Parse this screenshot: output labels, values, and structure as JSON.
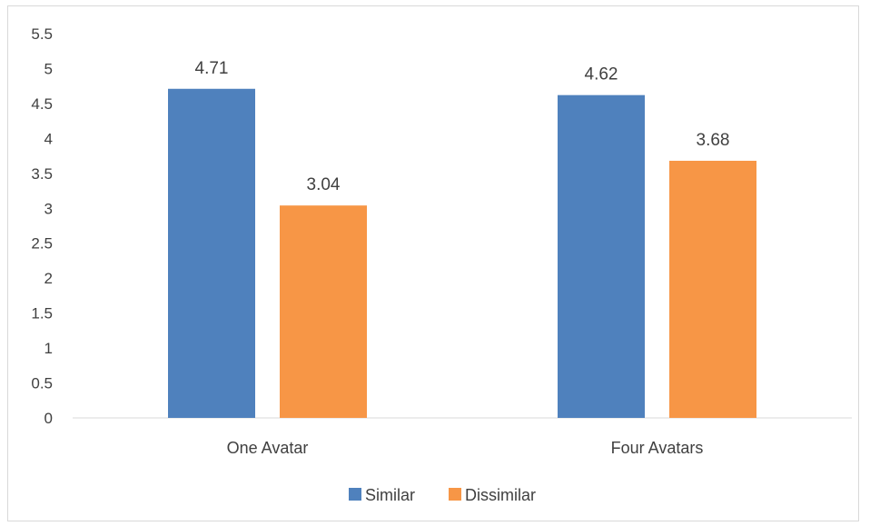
{
  "chart_data": {
    "type": "bar",
    "categories": [
      "One Avatar",
      "Four Avatars"
    ],
    "series": [
      {
        "name": "Similar",
        "values": [
          4.71,
          4.62
        ],
        "color": "#4f81bd"
      },
      {
        "name": "Dissimilar",
        "values": [
          3.04,
          3.68
        ],
        "color": "#f79646"
      }
    ],
    "ylim": [
      0,
      5.5
    ],
    "yticks": [
      "0",
      "0.5",
      "1",
      "1.5",
      "2",
      "2.5",
      "3",
      "3.5",
      "4",
      "4.5",
      "5",
      "5.5"
    ],
    "grid": false,
    "legend_position": "bottom",
    "data_labels": true
  }
}
